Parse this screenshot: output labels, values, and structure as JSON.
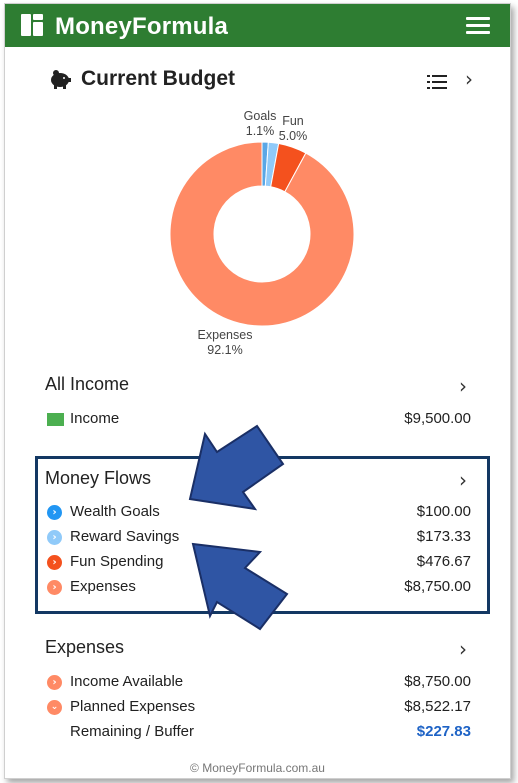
{
  "header": {
    "app_title": "MoneyFormula",
    "logo_icon": "grid-logo-icon",
    "menu_icon": "hamburger-icon"
  },
  "budget": {
    "title": "Current Budget",
    "piggy_icon": "piggy-bank-icon",
    "list_icon": "list-icon"
  },
  "chart_data": {
    "type": "pie",
    "donut": true,
    "title": "",
    "slices": [
      {
        "name": "Goals",
        "percent_label": "1.1%",
        "value": 1.1,
        "color": "#5aa7e6"
      },
      {
        "name": "Fun",
        "percent_label": "5.0%",
        "value": 5.0,
        "color": "#f4511e"
      },
      {
        "name": "Expenses",
        "percent_label": "92.1%",
        "value": 92.1,
        "color": "#ff8a65"
      }
    ],
    "small_slice": {
      "value": 1.8,
      "color": "#90caf9"
    }
  },
  "income": {
    "title": "All Income",
    "rows": [
      {
        "label": "Income",
        "value": "$9,500.00",
        "color": "#4caf50"
      }
    ]
  },
  "flows": {
    "title": "Money Flows",
    "rows": [
      {
        "label": "Wealth Goals",
        "value": "$100.00",
        "color": "#2196f3"
      },
      {
        "label": "Reward Savings",
        "value": "$173.33",
        "color": "#90caf9"
      },
      {
        "label": "Fun Spending",
        "value": "$476.67",
        "color": "#f4511e"
      },
      {
        "label": "Expenses",
        "value": "$8,750.00",
        "color": "#ff8a65"
      }
    ]
  },
  "expenses": {
    "title": "Expenses",
    "rows": [
      {
        "label": "Income Available",
        "value": "$8,750.00",
        "color": "#ff8a65"
      },
      {
        "label": "Planned Expenses",
        "value": "$8,522.17",
        "color": "#ff8a65"
      },
      {
        "label": "Remaining / Buffer",
        "value": "$227.83",
        "color": "#1e63c6"
      }
    ]
  },
  "footer": {
    "text": "© MoneyFormula.com.au"
  },
  "colors": {
    "header": "#2e7d32",
    "highlight_box": "#133863",
    "arrow": "#2f55a4"
  }
}
